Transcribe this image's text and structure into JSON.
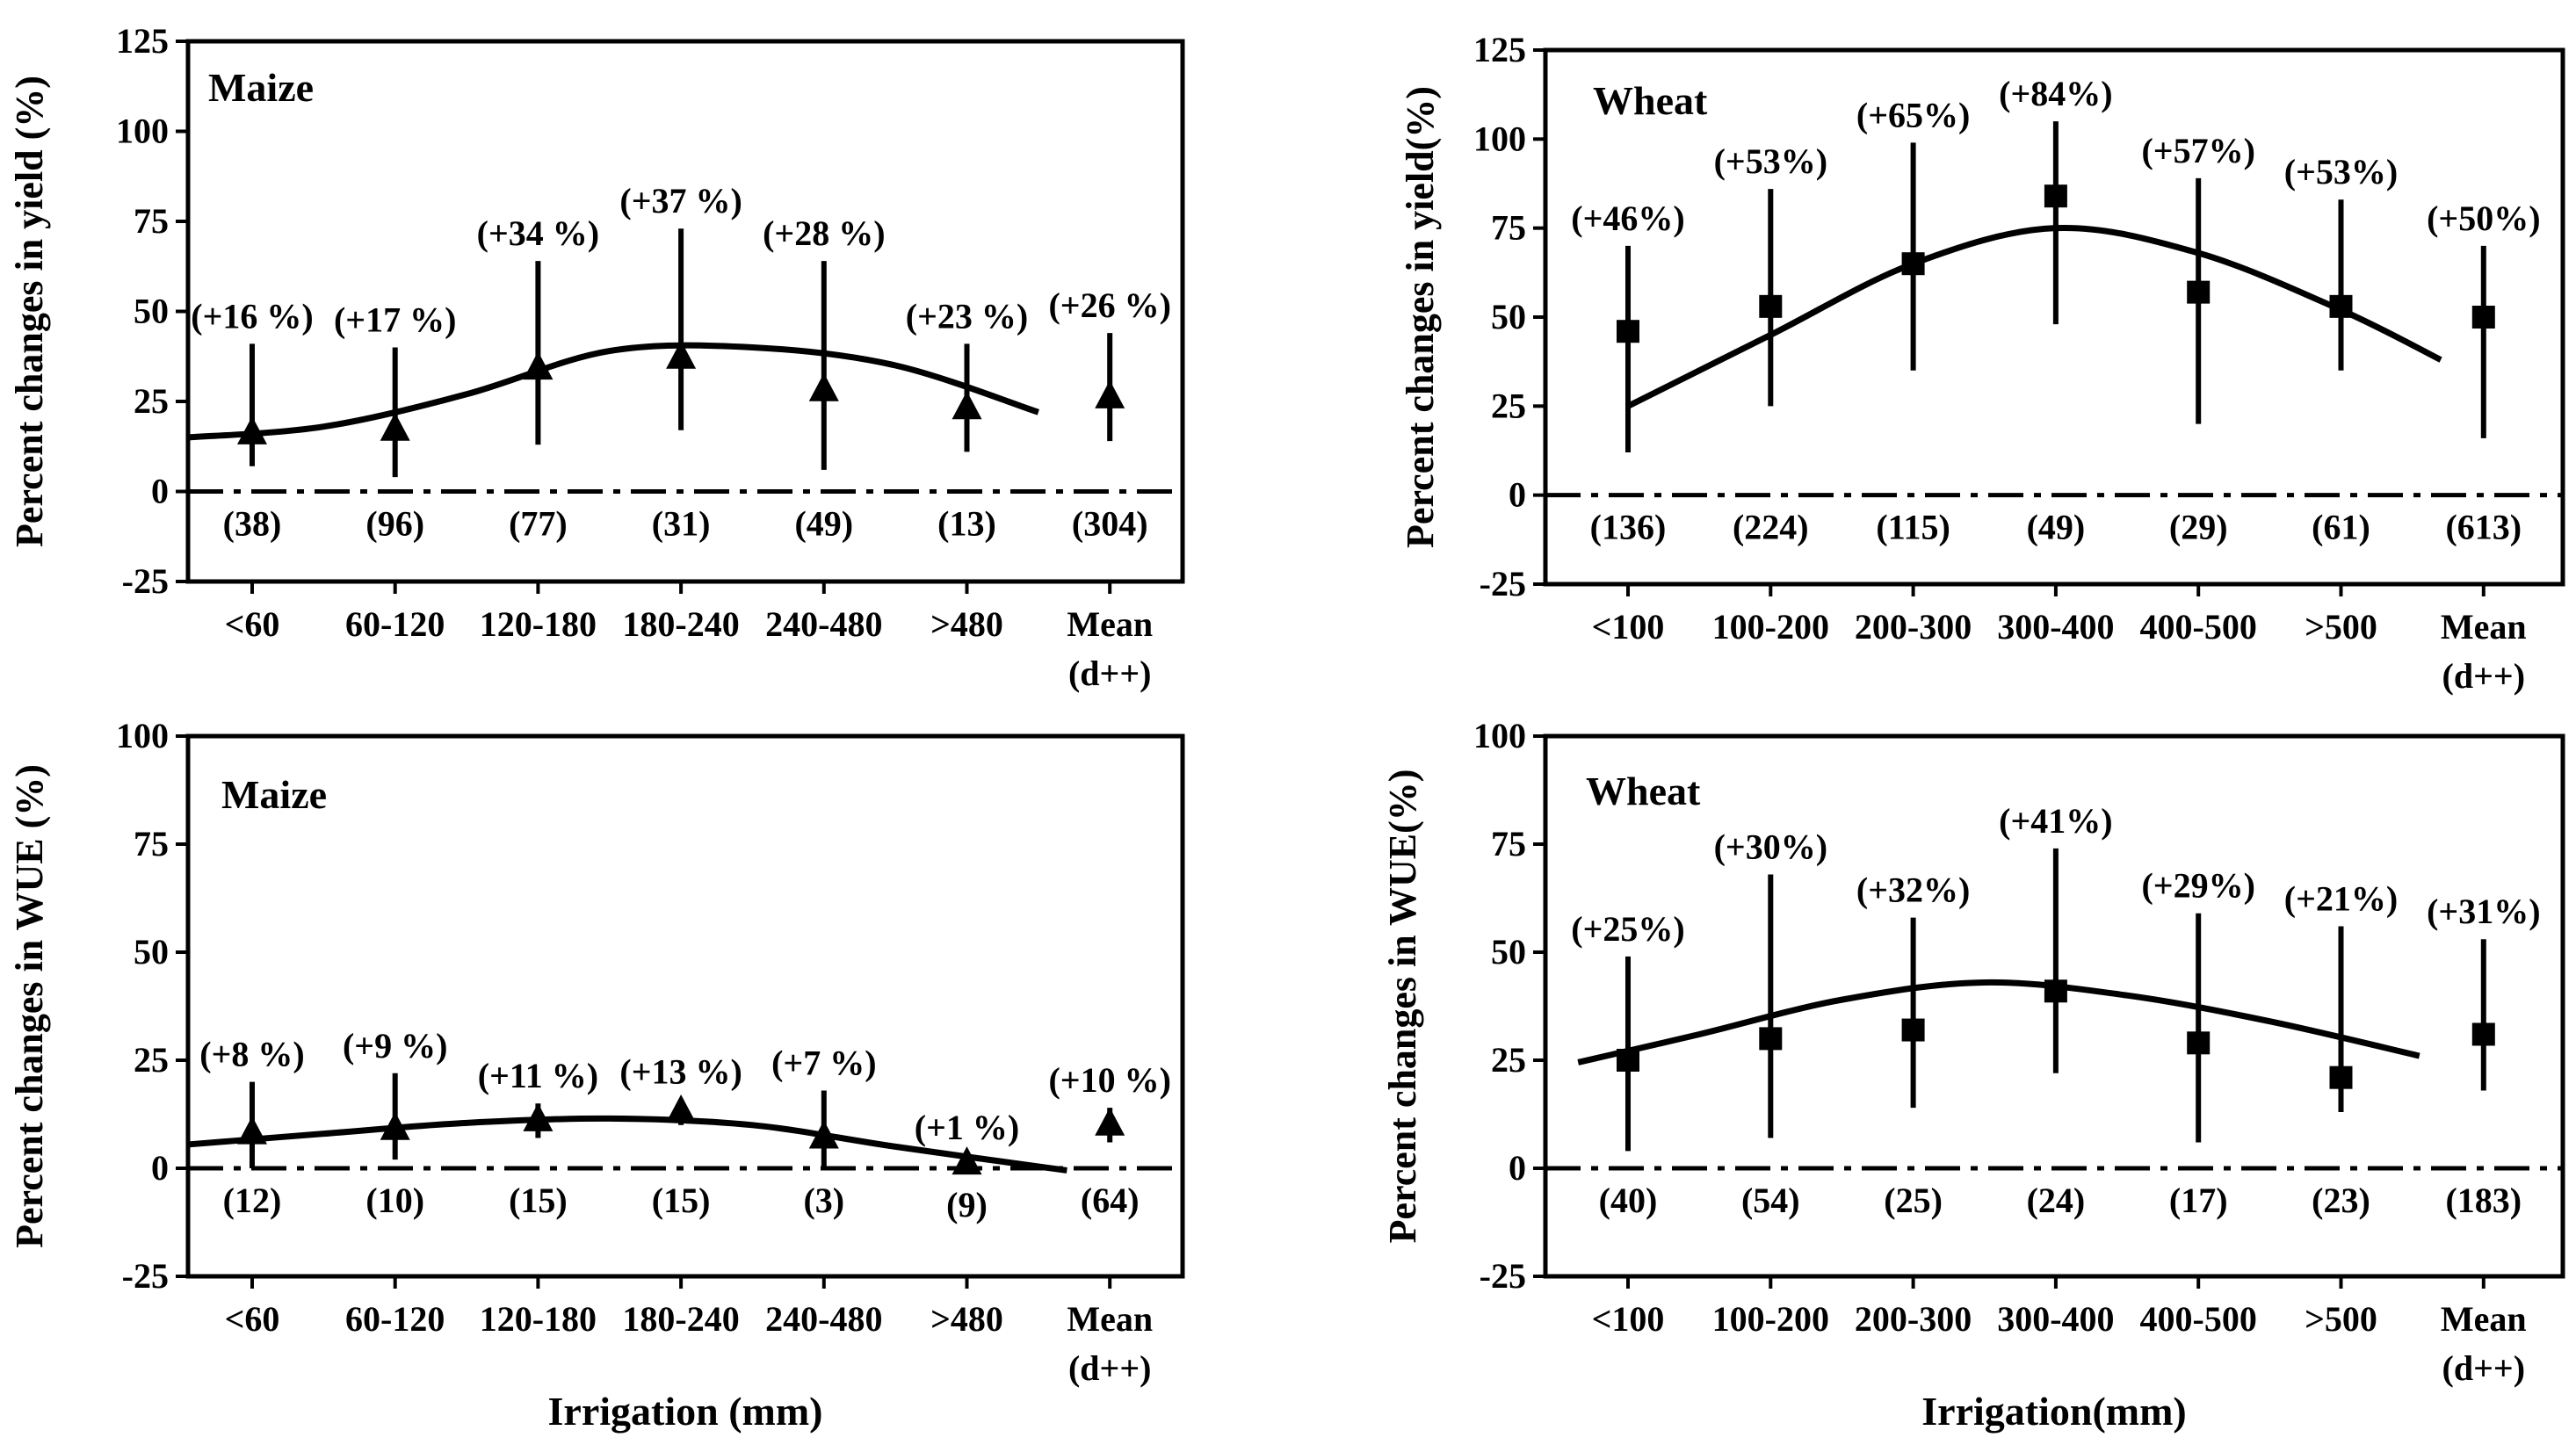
{
  "colors": {
    "ink": "#000000",
    "background": "#ffffff"
  },
  "chart_data": [
    {
      "id": "maize-yield",
      "type": "scatter",
      "panel_title": "Maize",
      "ylabel": "Percent changes in yield (%)",
      "xlabel": "",
      "ylim": [
        -25,
        125
      ],
      "yticks": [
        "-25",
        "0",
        "25",
        "50",
        "75",
        "100",
        "125"
      ],
      "marker": "triangle",
      "categories": [
        "<60",
        "60-120",
        "120-180",
        "180-240",
        "240-480",
        ">480",
        "Mean\n(d++)"
      ],
      "values": [
        16,
        17,
        34,
        37,
        28,
        23,
        26
      ],
      "error_low": [
        7,
        4,
        13,
        17,
        6,
        11,
        14
      ],
      "error_high": [
        41,
        40,
        64,
        73,
        64,
        41,
        44
      ],
      "pct_labels": [
        "(+16 %)",
        "(+17 %)",
        "(+34 %)",
        "(+37 %)",
        "(+28 %)",
        "(+23 %)",
        "(+26 %)"
      ],
      "n_labels": [
        "(38)",
        "(96)",
        "(77)",
        "(31)",
        "(49)",
        "(13)",
        "(304)"
      ],
      "fit_curve": {
        "x_cat": [
          -0.45,
          0.5,
          1.5,
          2.5,
          3.5,
          4.5,
          5.5
        ],
        "y": [
          15,
          18,
          27,
          39,
          40,
          35,
          22
        ]
      }
    },
    {
      "id": "wheat-yield",
      "type": "scatter",
      "panel_title": "Wheat",
      "ylabel": "Percent changes in yield(%)",
      "xlabel": "",
      "ylim": [
        -25,
        125
      ],
      "yticks": [
        "-25",
        "0",
        "25",
        "50",
        "75",
        "100",
        "125"
      ],
      "marker": "square",
      "categories": [
        "<100",
        "100-200",
        "200-300",
        "300-400",
        "400-500",
        ">500",
        "Mean\n(d++)"
      ],
      "values": [
        46,
        53,
        65,
        84,
        57,
        53,
        50
      ],
      "error_low": [
        12,
        25,
        35,
        48,
        20,
        35,
        16
      ],
      "error_high": [
        70,
        86,
        99,
        105,
        89,
        83,
        70
      ],
      "pct_labels": [
        "(+46%)",
        "(+53%)",
        "(+65%)",
        "(+84%)",
        "(+57%)",
        "(+53%)",
        "(+50%)"
      ],
      "n_labels": [
        "(136)",
        "(224)",
        "(115)",
        "(49)",
        "(29)",
        "(61)",
        "(613)"
      ],
      "fit_curve": {
        "x_cat": [
          0,
          1,
          2,
          3,
          4,
          5,
          5.7
        ],
        "y": [
          25,
          45,
          65,
          75,
          68,
          52,
          38
        ]
      }
    },
    {
      "id": "maize-wue",
      "type": "scatter",
      "panel_title": "Maize",
      "ylabel": "Percent changes in WUE (%)",
      "xlabel": "Irrigation (mm)",
      "ylim": [
        -25,
        100
      ],
      "yticks": [
        "-25",
        "0",
        "25",
        "50",
        "75",
        "100"
      ],
      "marker": "triangle",
      "categories": [
        "<60",
        "60-120",
        "120-180",
        "180-240",
        "240-480",
        ">480",
        "Mean\n(d++)"
      ],
      "values": [
        8,
        9,
        11,
        13,
        7,
        1,
        10
      ],
      "error_low": [
        0,
        2,
        7,
        10,
        0,
        -1,
        6
      ],
      "error_high": [
        20,
        22,
        15,
        16,
        18,
        3,
        14
      ],
      "pct_labels": [
        "(+8 %)",
        "(+9 %)",
        "(+11 %)",
        "(+13 %)",
        "(+7 %)",
        "(+1 %)",
        "(+10 %)"
      ],
      "n_labels": [
        "(12)",
        "(10)",
        "(15)",
        "(15)",
        "(3)",
        "(9)",
        "(64)"
      ],
      "fit_curve": {
        "x_cat": [
          -0.45,
          0.5,
          1.5,
          2.5,
          3.5,
          4.5,
          5.7
        ],
        "y": [
          5.5,
          8,
          10.5,
          11.5,
          10,
          5,
          -0.5
        ]
      }
    },
    {
      "id": "wheat-wue",
      "type": "scatter",
      "panel_title": "Wheat",
      "ylabel": "Percent changes in WUE(%)",
      "xlabel": "Irrigation(mm)",
      "ylim": [
        -25,
        100
      ],
      "yticks": [
        "-25",
        "0",
        "25",
        "50",
        "75",
        "100"
      ],
      "marker": "square",
      "categories": [
        "<100",
        "100-200",
        "200-300",
        "300-400",
        "400-500",
        ">500",
        "Mean\n(d++)"
      ],
      "values": [
        25,
        30,
        32,
        41,
        29,
        21,
        31
      ],
      "error_low": [
        4,
        7,
        14,
        22,
        6,
        13,
        18
      ],
      "error_high": [
        49,
        68,
        58,
        74,
        59,
        56,
        53
      ],
      "pct_labels": [
        "(+25%)",
        "(+30%)",
        "(+32%)",
        "(+41%)",
        "(+29%)",
        "(+21%)",
        "(+31%)"
      ],
      "n_labels": [
        "(40)",
        "(54)",
        "(25)",
        "(24)",
        "(17)",
        "(23)",
        "(183)"
      ],
      "fit_curve": {
        "x_cat": [
          -0.35,
          0.5,
          1.5,
          2.5,
          3.5,
          4.5,
          5.55
        ],
        "y": [
          24.5,
          31,
          39,
          43,
          40,
          34,
          26
        ]
      }
    }
  ]
}
